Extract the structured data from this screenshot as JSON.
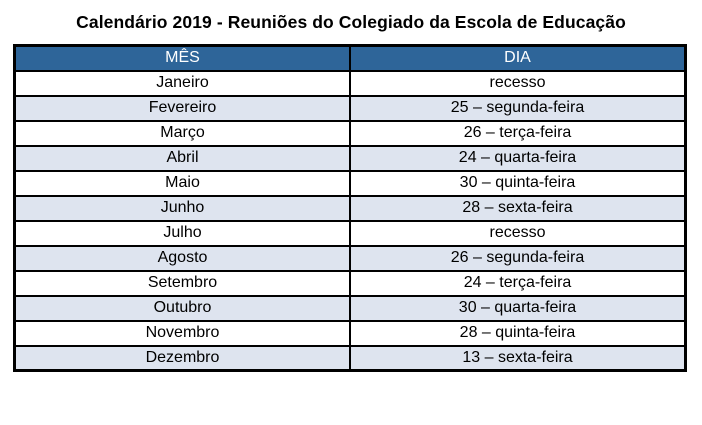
{
  "title": "Calendário 2019 - Reuniões do Colegiado da Escola de Educação",
  "colors": {
    "header_bg": "#2E6599",
    "header_text": "#FFFFFF",
    "row_alt_bg": "#DEE4EF",
    "border": "#000000"
  },
  "table": {
    "columns": [
      "MÊS",
      "DIA"
    ],
    "rows": [
      {
        "mes": "Janeiro",
        "dia": "recesso"
      },
      {
        "mes": "Fevereiro",
        "dia": "25 – segunda-feira"
      },
      {
        "mes": "Março",
        "dia": "26 – terça-feira"
      },
      {
        "mes": "Abril",
        "dia": "24 – quarta-feira"
      },
      {
        "mes": "Maio",
        "dia": "30 – quinta-feira"
      },
      {
        "mes": "Junho",
        "dia": "28 – sexta-feira"
      },
      {
        "mes": "Julho",
        "dia": "recesso"
      },
      {
        "mes": "Agosto",
        "dia": "26 – segunda-feira"
      },
      {
        "mes": "Setembro",
        "dia": "24 – terça-feira"
      },
      {
        "mes": "Outubro",
        "dia": "30 – quarta-feira"
      },
      {
        "mes": "Novembro",
        "dia": "28 – quinta-feira"
      },
      {
        "mes": "Dezembro",
        "dia": "13 – sexta-feira"
      }
    ]
  }
}
